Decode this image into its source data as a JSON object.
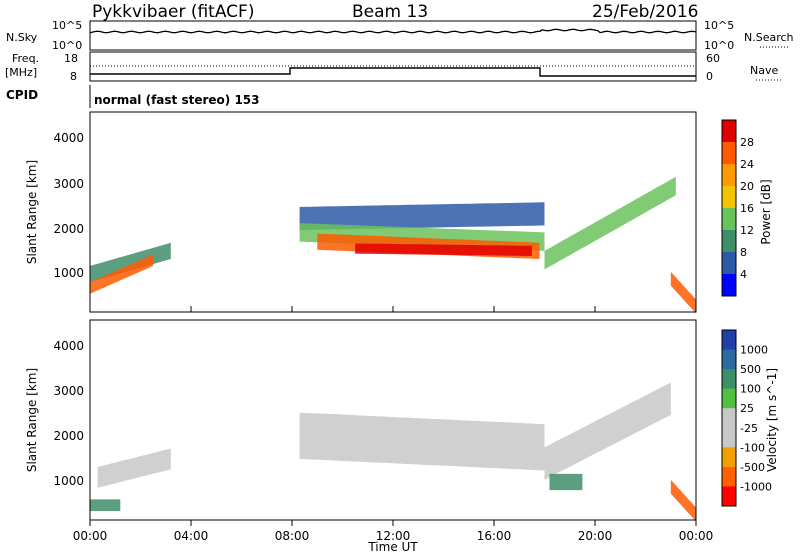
{
  "header": {
    "station": "Pykkvibaer (fitACF)",
    "beam": "Beam 13",
    "date": "25/Feb/2016"
  },
  "noise_panel": {
    "left_label": "N.Sky",
    "right_label": "N.Search",
    "left_ticks": [
      "10^5",
      "10^0"
    ],
    "right_ticks": [
      "10^5",
      "10^0"
    ]
  },
  "freq_panel": {
    "left_label_1": "Freq.",
    "left_label_2": "[MHz]",
    "right_label": "Nave",
    "left_ticks": [
      "18",
      "8"
    ],
    "right_ticks": [
      "60",
      "0"
    ]
  },
  "cpid": {
    "label": "CPID",
    "text": "normal (fast stereo) 153"
  },
  "x_axis": {
    "title": "Time UT",
    "ticks": [
      "00:00",
      "04:00",
      "08:00",
      "12:00",
      "16:00",
      "20:00",
      "00:00"
    ]
  },
  "power_panel": {
    "ylabel": "Slant Range [km]",
    "y_ticks": [
      "4000",
      "3000",
      "2000",
      "1000"
    ],
    "colorbar_label": "Power [dB]",
    "colorbar_ticks": [
      "28",
      "24",
      "20",
      "16",
      "12",
      "8",
      "4"
    ],
    "colorbar_colors": [
      "#e00000",
      "#ff5a00",
      "#ff9b00",
      "#f2c400",
      "#6ac25a",
      "#3f8e6a",
      "#2d5aa8",
      "#0000ff"
    ]
  },
  "velocity_panel": {
    "ylabel": "Slant Range [km]",
    "y_ticks": [
      "4000",
      "3000",
      "2000",
      "1000"
    ],
    "colorbar_label": "Velocity [m s^-1]",
    "colorbar_ticks": [
      "1000",
      "500",
      "100",
      "25",
      "-25",
      "-100",
      "-500",
      "-1000"
    ],
    "colorbar_colors": [
      "#2040a8",
      "#2d6aa0",
      "#3f8e6a",
      "#50c040",
      "#c8c8c8",
      "#c8c8c8",
      "#f0a000",
      "#ff6000",
      "#ff0000"
    ]
  },
  "chart_data": {
    "type": "heatmap",
    "x_range_hours": [
      0,
      24
    ],
    "y_range_km": [
      180,
      4500
    ],
    "power_bands": [
      {
        "name": "early-low",
        "t0": 0.0,
        "t1": 3.2,
        "r_start": 1000,
        "r_end": 1500,
        "thickness": 350,
        "color": "#3f8e6a"
      },
      {
        "name": "early-core",
        "t0": 0.0,
        "t1": 2.5,
        "r_start": 700,
        "r_end": 1300,
        "thickness": 250,
        "color": "#ff5a00"
      },
      {
        "name": "main-upper",
        "t0": 8.3,
        "t1": 18.0,
        "r_start": 2200,
        "r_end": 2300,
        "thickness": 500,
        "color": "#2d5aa8"
      },
      {
        "name": "main-mid",
        "t0": 8.3,
        "t1": 18.0,
        "r_start": 1900,
        "r_end": 1700,
        "thickness": 400,
        "color": "#6ac25a"
      },
      {
        "name": "main-core",
        "t0": 9.0,
        "t1": 17.8,
        "r_start": 1700,
        "r_end": 1500,
        "thickness": 350,
        "color": "#ff5a00"
      },
      {
        "name": "main-red",
        "t0": 10.5,
        "t1": 17.5,
        "r_start": 1550,
        "r_end": 1500,
        "thickness": 220,
        "color": "#e00000"
      },
      {
        "name": "late-rise",
        "t0": 18.0,
        "t1": 23.2,
        "r_start": 1300,
        "r_end": 2900,
        "thickness": 400,
        "color": "#6ac25a"
      },
      {
        "name": "late-end",
        "t0": 23.0,
        "t1": 24.0,
        "r_start": 900,
        "r_end": 300,
        "thickness": 300,
        "color": "#ff5a00"
      }
    ],
    "velocity_bands": [
      {
        "name": "early-grey",
        "t0": 0.3,
        "t1": 3.2,
        "r_start": 1100,
        "r_end": 1500,
        "thickness": 450,
        "color": "#c8c8c8"
      },
      {
        "name": "early-green",
        "t0": 0.0,
        "t1": 1.2,
        "r_start": 500,
        "r_end": 500,
        "thickness": 250,
        "color": "#3f8e6a"
      },
      {
        "name": "main-grey",
        "t0": 8.3,
        "t1": 18.0,
        "r_start": 2000,
        "r_end": 1750,
        "thickness": 1000,
        "color": "#c8c8c8"
      },
      {
        "name": "late-grey",
        "t0": 18.0,
        "t1": 23.0,
        "r_start": 1400,
        "r_end": 2800,
        "thickness": 700,
        "color": "#c8c8c8"
      },
      {
        "name": "late-green",
        "t0": 18.2,
        "t1": 19.5,
        "r_start": 1000,
        "r_end": 1000,
        "thickness": 350,
        "color": "#3f8e6a"
      },
      {
        "name": "late-red",
        "t0": 23.0,
        "t1": 24.0,
        "r_start": 900,
        "r_end": 300,
        "thickness": 300,
        "color": "#ff5a00"
      }
    ]
  }
}
